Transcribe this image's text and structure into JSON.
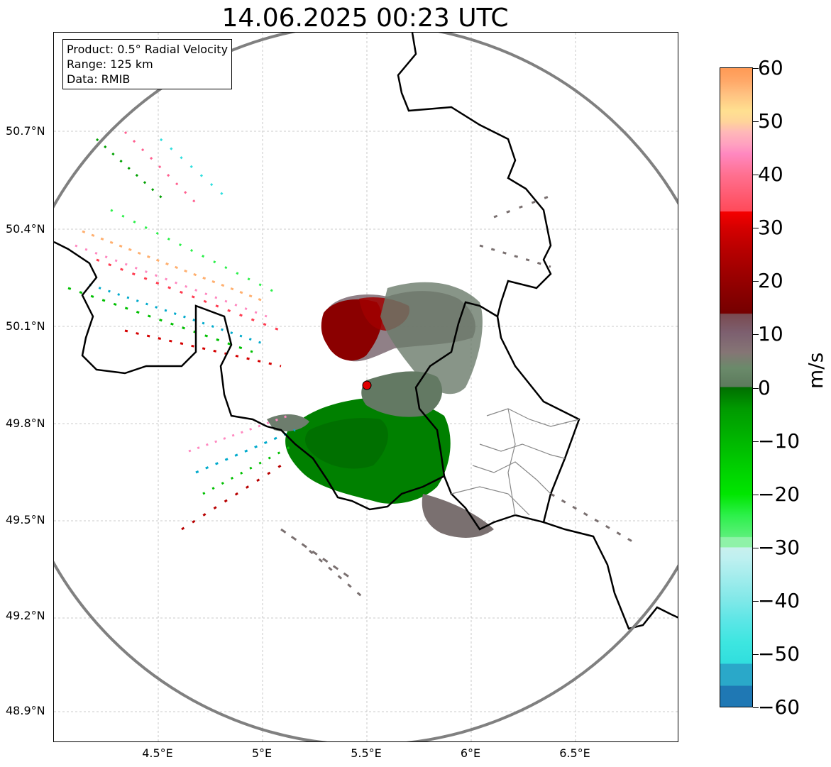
{
  "title": "14.06.2025 00:23 UTC",
  "info": {
    "product": "Product: 0.5° Radial Velocity",
    "range": "Range: 125 km",
    "data": "Data: RMIB"
  },
  "axes": {
    "y_ticks": [
      "50.7°N",
      "50.4°N",
      "50.1°N",
      "49.8°N",
      "49.5°N",
      "49.2°N",
      "48.9°N"
    ],
    "x_ticks": [
      "4.5°E",
      "5°E",
      "5.5°E",
      "6°E",
      "6.5°E"
    ]
  },
  "colorbar": {
    "unit": "m/s",
    "ticks": [
      "60",
      "50",
      "40",
      "30",
      "20",
      "10",
      "0",
      "−10",
      "−20",
      "−30",
      "−40",
      "−50",
      "−60"
    ]
  },
  "radar_site": {
    "color": "#ff0000"
  },
  "map_view": {
    "center": "50°N 5.5°E",
    "zoom": "125 km radius"
  }
}
